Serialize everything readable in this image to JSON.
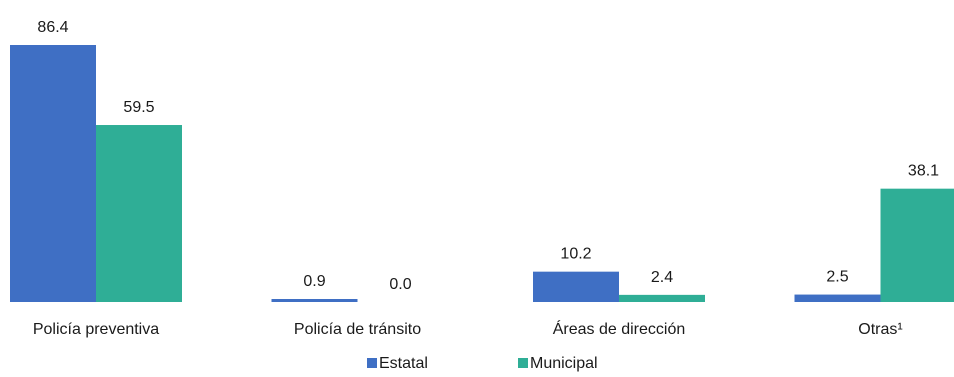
{
  "chart_data": {
    "type": "bar",
    "categories": [
      "Policía preventiva",
      "Policía de tránsito",
      "Áreas de dirección",
      "Otras¹"
    ],
    "series": [
      {
        "name": "Estatal",
        "values": [
          86.4,
          0.9,
          10.2,
          2.5
        ],
        "color": "#3f6fc4",
        "value_labels": [
          "86.4",
          "0.9",
          "10.2",
          "2.5"
        ]
      },
      {
        "name": "Municipal",
        "values": [
          59.5,
          0.0,
          2.4,
          38.1
        ],
        "color": "#2fae96",
        "value_labels": [
          "59.5",
          "0.0",
          "2.4",
          "38.1"
        ]
      }
    ],
    "ylim": [
      0,
      86.4
    ],
    "grid": false,
    "legend_position": "bottom"
  }
}
